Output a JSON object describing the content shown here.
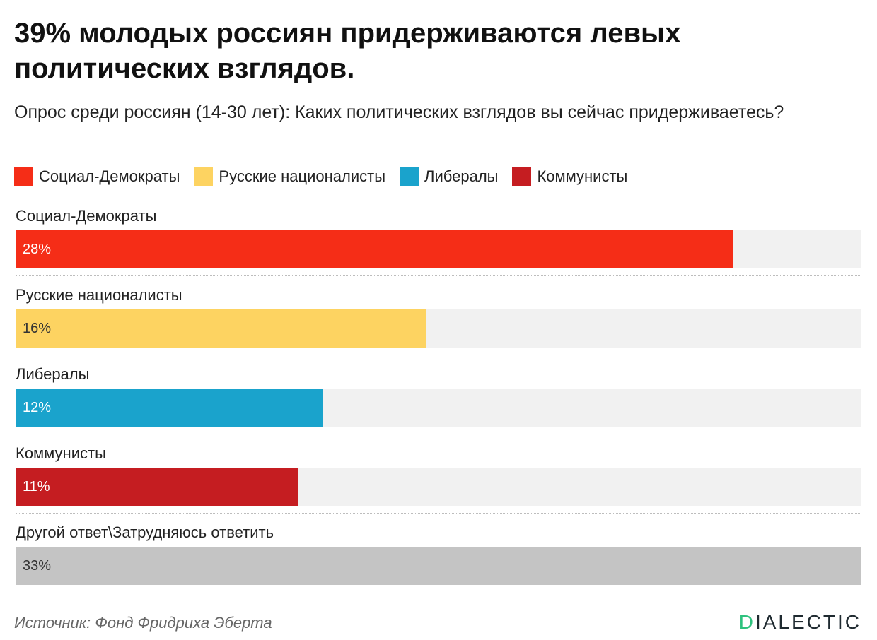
{
  "title": "39% молодых россиян придерживаются левых политических взглядов.",
  "subtitle": "Опрос среди россиян (14-30 лет): Каких политических взглядов вы сейчас придерживаетесь?",
  "legend": [
    {
      "label": "Социал-Демократы",
      "color": "#f52d17"
    },
    {
      "label": "Русские националисты",
      "color": "#fdd361"
    },
    {
      "label": "Либералы",
      "color": "#1aa3cc"
    },
    {
      "label": "Коммунисты",
      "color": "#c51d21"
    }
  ],
  "chart_data": {
    "type": "bar",
    "orientation": "horizontal",
    "title": "39% молодых россиян придерживаются левых политических взглядов.",
    "subtitle": "Опрос среди россиян (14-30 лет): Каких политических взглядов вы сейчас придерживаетесь?",
    "categories": [
      "Социал-Демократы",
      "Русские националисты",
      "Либералы",
      "Коммунисты",
      "Другой ответ\\Затрудняюсь ответить"
    ],
    "values": [
      28,
      16,
      12,
      11,
      33
    ],
    "value_labels": [
      "28%",
      "16%",
      "12%",
      "11%",
      "33%"
    ],
    "colors": [
      "#f52d17",
      "#fdd361",
      "#1aa3cc",
      "#c51d21",
      "#c4c4c4"
    ],
    "value_text_colors": [
      "#ffffff",
      "#333333",
      "#ffffff",
      "#ffffff",
      "#333333"
    ],
    "unit": "%",
    "xlim": [
      0,
      33
    ],
    "legend_placement": "top-left",
    "grid": false
  },
  "source": "Источник: Фонд Фридриха Эберта",
  "brand": {
    "first": "D",
    "rest": "IALECTIC"
  }
}
